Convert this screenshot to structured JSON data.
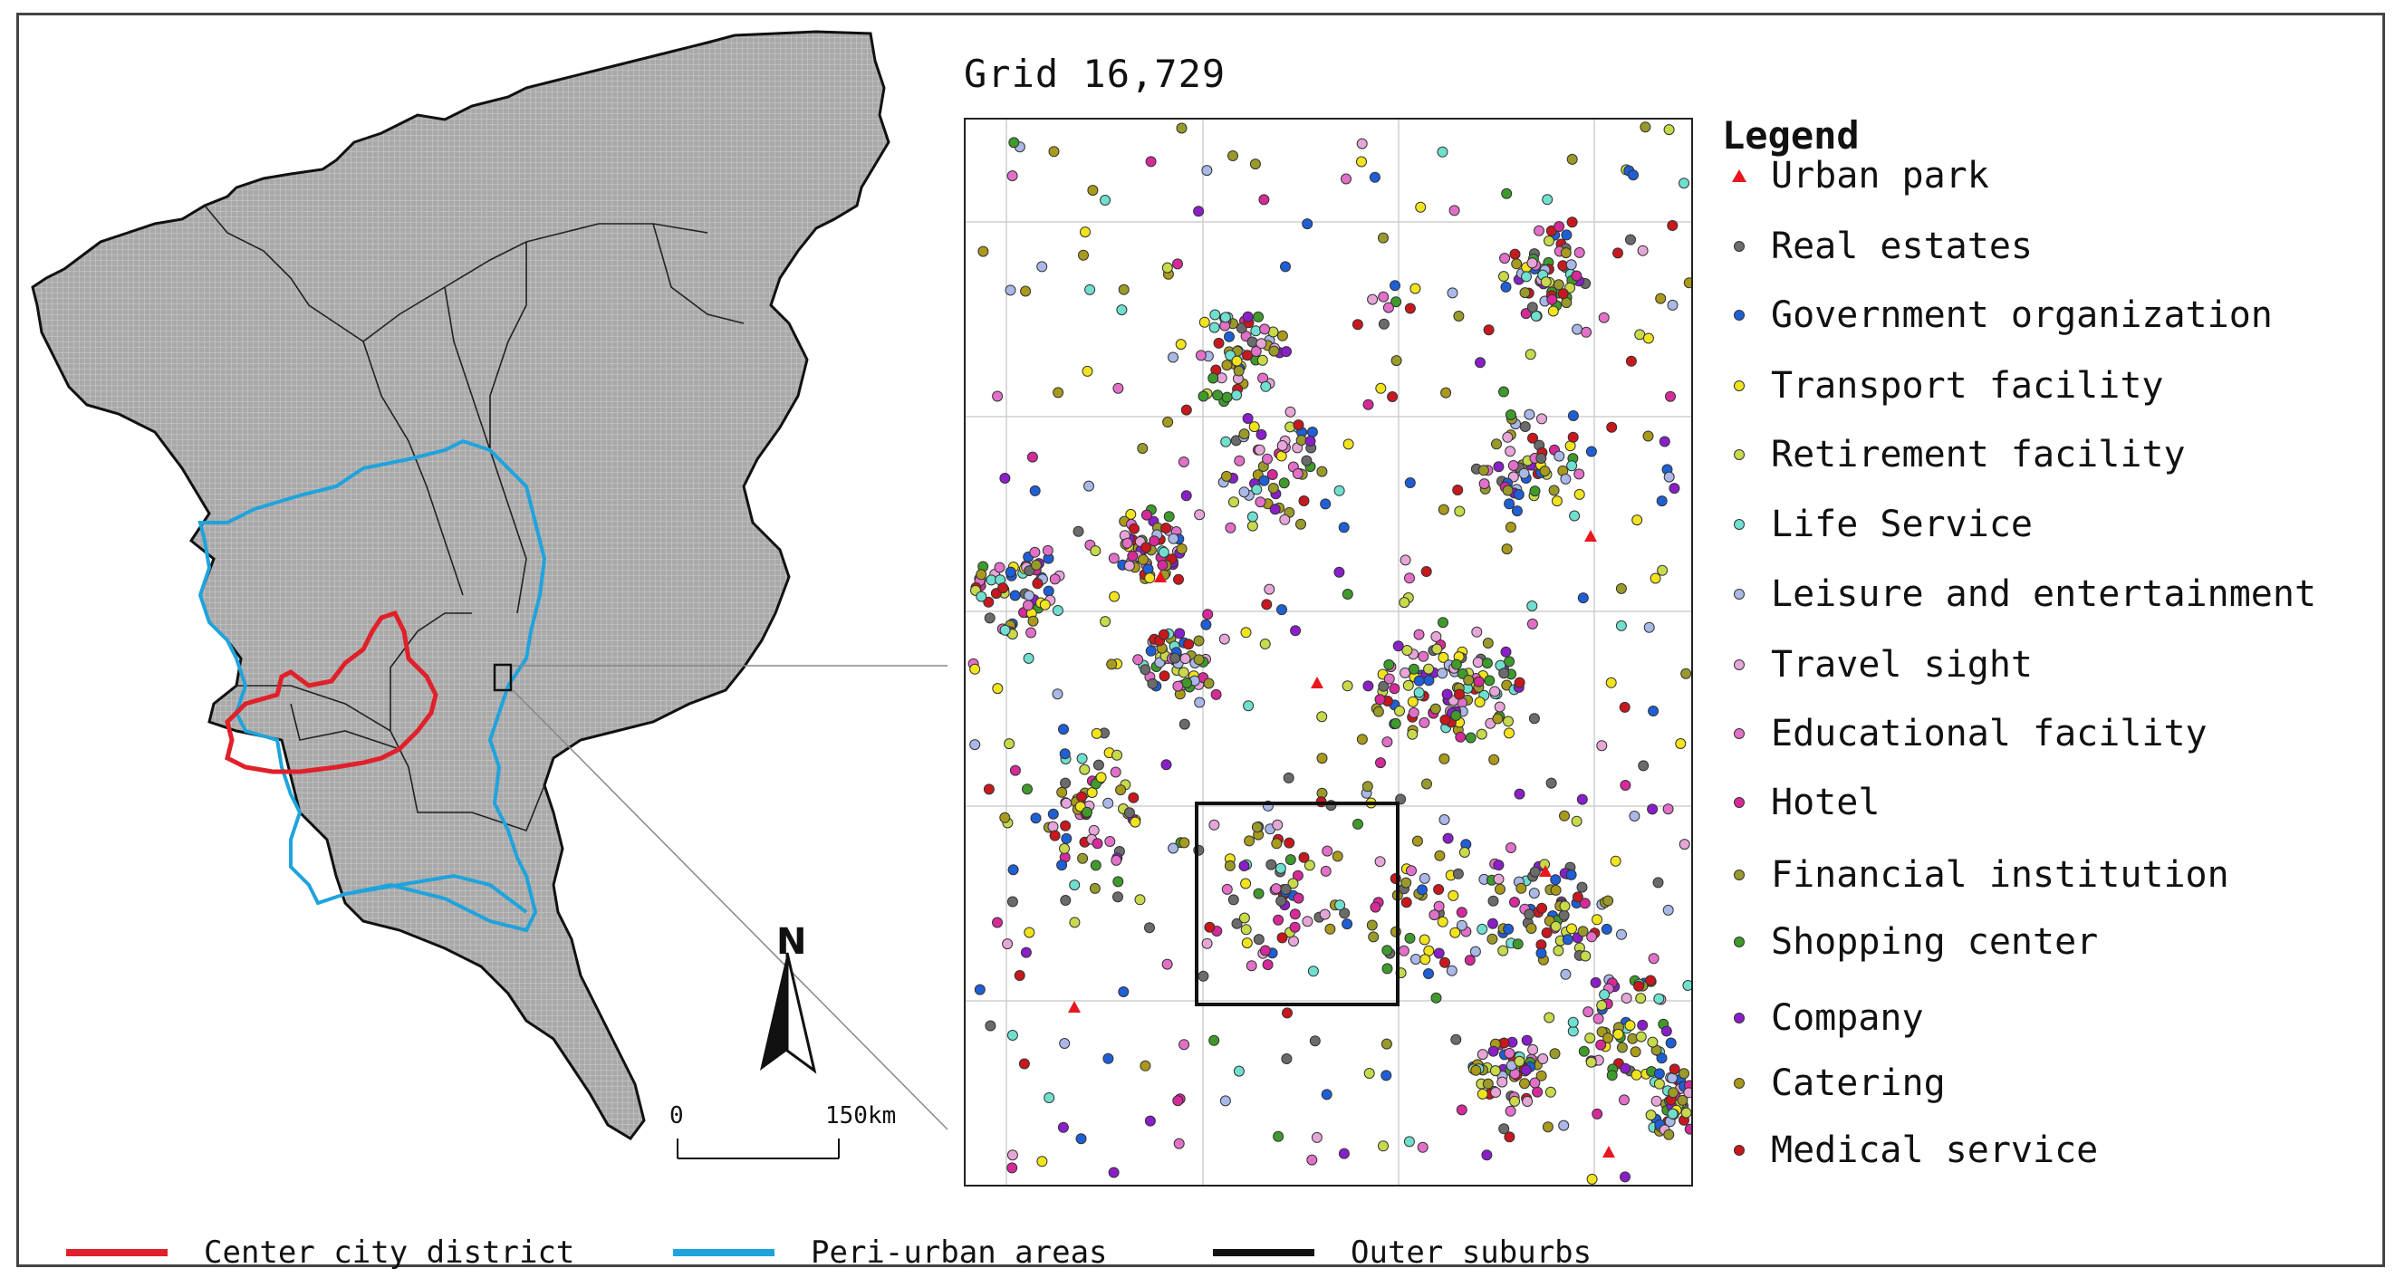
{
  "grid_title": "Grid 16,729",
  "legend": {
    "title": "Legend",
    "items": [
      {
        "label": "Urban park",
        "color": "#e8161d",
        "shape": "triangle"
      },
      {
        "label": "Real estates",
        "color": "#6b6b6b",
        "shape": "circle"
      },
      {
        "label": "Government organization",
        "color": "#1f5fd6",
        "shape": "circle"
      },
      {
        "label": "Transport facility",
        "color": "#f2e41c",
        "shape": "circle"
      },
      {
        "label": "Retirement facility",
        "color": "#c8d94a",
        "shape": "circle"
      },
      {
        "label": "Life Service",
        "color": "#6fe0d0",
        "shape": "circle"
      },
      {
        "label": "Leisure and entertainment",
        "color": "#a9b8e6",
        "shape": "circle"
      },
      {
        "label": "Travel sight",
        "color": "#e6a6d8",
        "shape": "circle"
      },
      {
        "label": "Educational facility",
        "color": "#e270c8",
        "shape": "circle"
      },
      {
        "label": "Hotel",
        "color": "#d62a9a",
        "shape": "circle"
      },
      {
        "label": "Financial institution",
        "color": "#9a9a2a",
        "shape": "circle"
      },
      {
        "label": "Shopping center",
        "color": "#3f9a2c",
        "shape": "circle"
      },
      {
        "label": "Company",
        "color": "#8a1fc9",
        "shape": "circle"
      },
      {
        "label": "Catering",
        "color": "#a99a1c",
        "shape": "circle"
      },
      {
        "label": "Medical service",
        "color": "#c8181e",
        "shape": "circle"
      }
    ]
  },
  "boundary_legend": [
    {
      "label": "Center city district",
      "color": "#e0202a"
    },
    {
      "label": "Peri-urban areas",
      "color": "#1fa3dc"
    },
    {
      "label": "Outer suburbs",
      "color": "#111111"
    }
  ],
  "north_arrow": {
    "label": "N",
    "icon": "north-arrow-icon"
  },
  "scale_bar": {
    "start_label": "0",
    "end_label": "150km"
  },
  "map_colors": {
    "land": "#a7a7a7",
    "outline": "#111111"
  }
}
